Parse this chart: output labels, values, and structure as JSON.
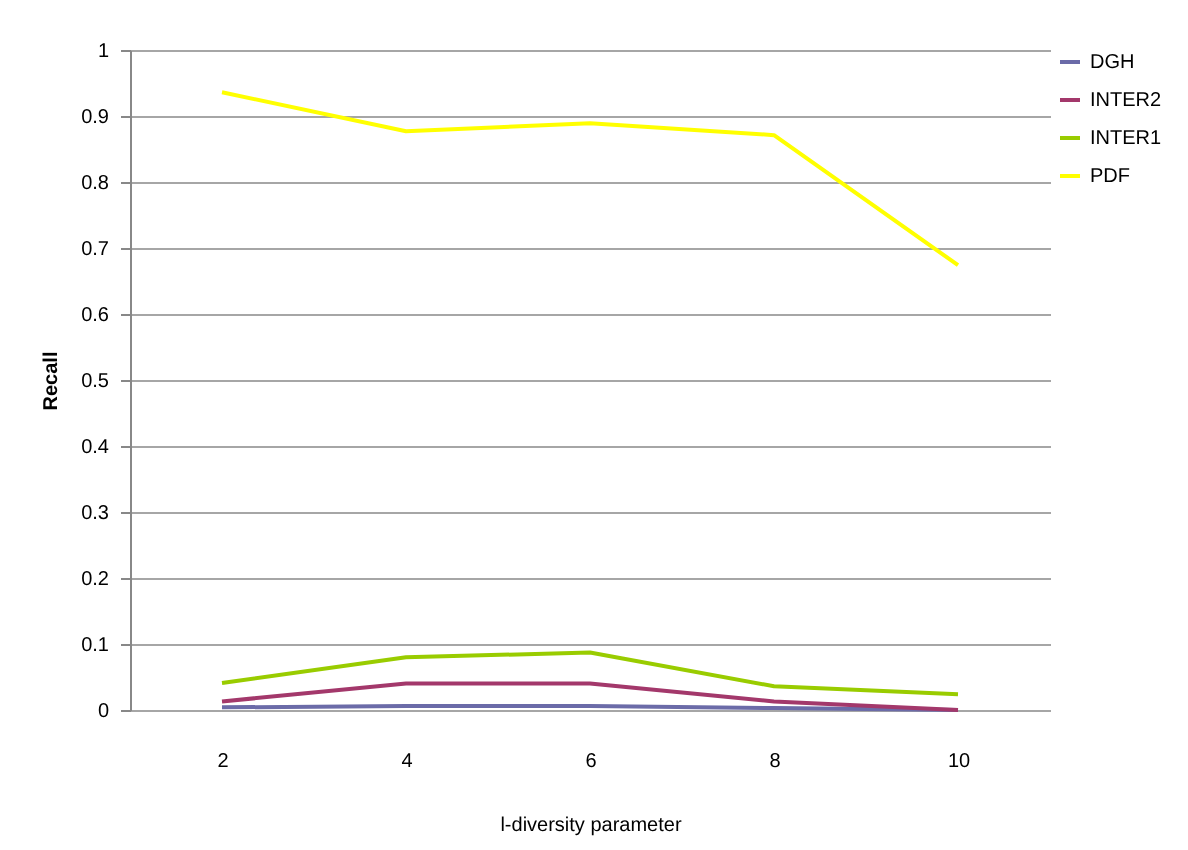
{
  "chart_data": {
    "type": "line",
    "xlabel": "l-diversity parameter",
    "ylabel": "Recall",
    "categories": [
      "2",
      "4",
      "6",
      "8",
      "10"
    ],
    "series": [
      {
        "name": "DGH",
        "color": "#6b6ba8",
        "values": [
          0.004,
          0.006,
          0.006,
          0.003,
          0
        ]
      },
      {
        "name": "INTER2",
        "color": "#a3386b",
        "values": [
          0.013,
          0.04,
          0.04,
          0.013,
          0
        ]
      },
      {
        "name": "INTER1",
        "color": "#99cc00",
        "values": [
          0.041,
          0.08,
          0.087,
          0.036,
          0.024
        ]
      },
      {
        "name": "PDF",
        "color": "#ffff00",
        "values": [
          0.936,
          0.877,
          0.889,
          0.871,
          0.674
        ]
      }
    ],
    "ylim": [
      0,
      1
    ],
    "yticks": [
      0,
      0.1,
      0.2,
      0.3,
      0.4,
      0.5,
      0.6,
      0.7,
      0.8,
      0.9,
      1
    ],
    "grid": "y",
    "legend": "right",
    "marker": "none",
    "line_style": "solid"
  }
}
